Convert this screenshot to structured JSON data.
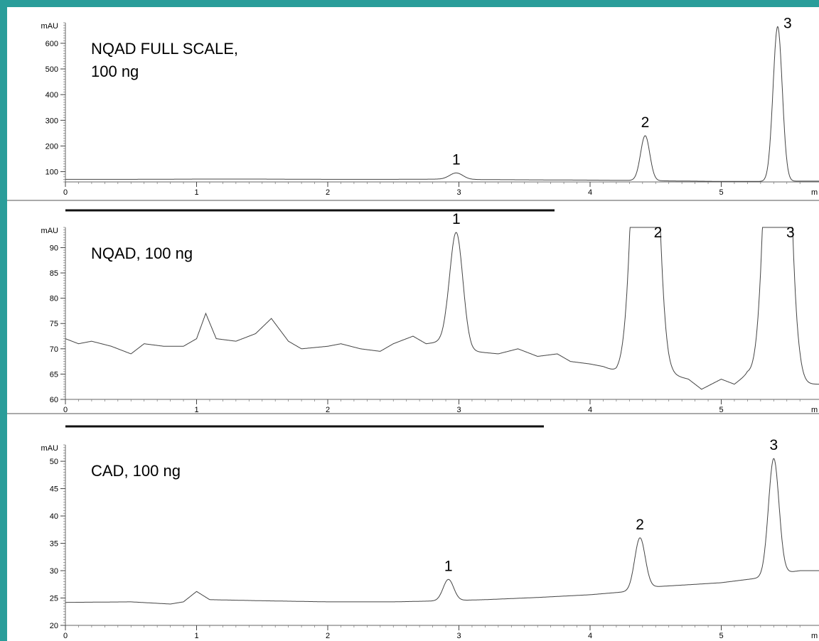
{
  "frame": {
    "border_color": "#2a9d9a"
  },
  "chart_data": [
    {
      "type": "line",
      "title_lines": [
        "NQAD FULL SCALE,",
        "100 ng"
      ],
      "ylabel": "mAU",
      "xlabel": "m",
      "xlim": [
        0,
        5.6
      ],
      "ylim": [
        60,
        680
      ],
      "yticks": [
        100,
        200,
        300,
        400,
        500,
        600
      ],
      "xticks": [
        0,
        1,
        2,
        3,
        4,
        5
      ],
      "grid": false,
      "baseline": {
        "points": [
          [
            0,
            70
          ],
          [
            0.5,
            70
          ],
          [
            1.0,
            71
          ],
          [
            1.5,
            71
          ],
          [
            2.0,
            70
          ],
          [
            2.5,
            70
          ],
          [
            2.9,
            71
          ],
          [
            3.2,
            69
          ],
          [
            3.6,
            68
          ],
          [
            4.0,
            67
          ],
          [
            4.3,
            66
          ],
          [
            4.6,
            64
          ],
          [
            5.0,
            62
          ],
          [
            5.3,
            62
          ],
          [
            5.6,
            63
          ]
        ]
      },
      "peaks": [
        {
          "label": "1",
          "x": 2.98,
          "height": 95,
          "width": 0.05
        },
        {
          "label": "2",
          "x": 4.42,
          "height": 240,
          "width": 0.035
        },
        {
          "label": "3",
          "x": 5.43,
          "height": 665,
          "width": 0.035
        }
      ]
    },
    {
      "type": "line",
      "title_lines": [
        "NQAD, 100 ng"
      ],
      "ylabel": "mAU",
      "xlabel": "m",
      "xlim": [
        0,
        5.6
      ],
      "ylim": [
        60,
        94
      ],
      "yticks": [
        60,
        65,
        70,
        75,
        80,
        85,
        90
      ],
      "xticks": [
        0,
        1,
        2,
        3,
        4,
        5
      ],
      "grid": false,
      "baseline": {
        "points": [
          [
            0,
            72
          ],
          [
            0.1,
            71
          ],
          [
            0.2,
            71.5
          ],
          [
            0.35,
            70.5
          ],
          [
            0.5,
            69
          ],
          [
            0.6,
            71
          ],
          [
            0.75,
            70.5
          ],
          [
            0.9,
            70.5
          ],
          [
            1.0,
            72
          ],
          [
            1.07,
            77
          ],
          [
            1.15,
            72
          ],
          [
            1.3,
            71.5
          ],
          [
            1.45,
            73
          ],
          [
            1.57,
            76
          ],
          [
            1.7,
            71.5
          ],
          [
            1.8,
            70
          ],
          [
            2.0,
            70.5
          ],
          [
            2.1,
            71
          ],
          [
            2.25,
            70
          ],
          [
            2.4,
            69.5
          ],
          [
            2.5,
            71
          ],
          [
            2.65,
            72.5
          ],
          [
            2.75,
            71
          ],
          [
            2.9,
            71.5
          ],
          [
            3.1,
            69.5
          ],
          [
            3.3,
            69
          ],
          [
            3.45,
            70
          ],
          [
            3.6,
            68.5
          ],
          [
            3.75,
            69
          ],
          [
            3.85,
            67.5
          ],
          [
            4.0,
            67
          ],
          [
            4.1,
            66.5
          ],
          [
            4.2,
            65.5
          ],
          [
            4.3,
            66.5
          ],
          [
            4.5,
            67
          ],
          [
            4.6,
            65
          ],
          [
            4.75,
            64
          ],
          [
            4.85,
            62
          ],
          [
            5.0,
            64
          ],
          [
            5.1,
            63
          ],
          [
            5.2,
            65
          ],
          [
            5.3,
            64
          ],
          [
            5.45,
            64
          ],
          [
            5.55,
            62
          ],
          [
            5.6,
            63
          ]
        ]
      },
      "peaks": [
        {
          "label": "1",
          "x": 2.98,
          "height": 93,
          "width": 0.05
        },
        {
          "label": "2",
          "x": 4.42,
          "height": 93,
          "width": 0.07,
          "offscale": true
        },
        {
          "label": "3",
          "x": 5.43,
          "height": 93,
          "width": 0.07,
          "offscale": true
        }
      ]
    },
    {
      "type": "line",
      "title_lines": [
        "CAD, 100 ng"
      ],
      "ylabel": "mAU",
      "xlabel": "m",
      "xlim": [
        0,
        5.6
      ],
      "ylim": [
        20,
        53
      ],
      "yticks": [
        20,
        25,
        30,
        35,
        40,
        45,
        50
      ],
      "xticks": [
        0,
        1,
        2,
        3,
        4,
        5
      ],
      "grid": false,
      "baseline": {
        "points": [
          [
            0,
            24.2
          ],
          [
            0.5,
            24.3
          ],
          [
            0.8,
            23.9
          ],
          [
            0.9,
            24.3
          ],
          [
            1.0,
            26.2
          ],
          [
            1.1,
            24.7
          ],
          [
            1.5,
            24.5
          ],
          [
            2.0,
            24.3
          ],
          [
            2.5,
            24.3
          ],
          [
            2.9,
            24.5
          ],
          [
            3.2,
            24.7
          ],
          [
            3.6,
            25.1
          ],
          [
            4.0,
            25.6
          ],
          [
            4.3,
            26.2
          ],
          [
            4.45,
            27
          ],
          [
            4.8,
            27.5
          ],
          [
            5.0,
            27.8
          ],
          [
            5.3,
            28.7
          ],
          [
            5.45,
            29.5
          ],
          [
            5.6,
            30
          ]
        ]
      },
      "peaks": [
        {
          "label": "1",
          "x": 2.92,
          "height": 28.4,
          "width": 0.04
        },
        {
          "label": "2",
          "x": 4.38,
          "height": 36,
          "width": 0.04
        },
        {
          "label": "3",
          "x": 5.4,
          "height": 50.5,
          "width": 0.04
        }
      ]
    }
  ]
}
